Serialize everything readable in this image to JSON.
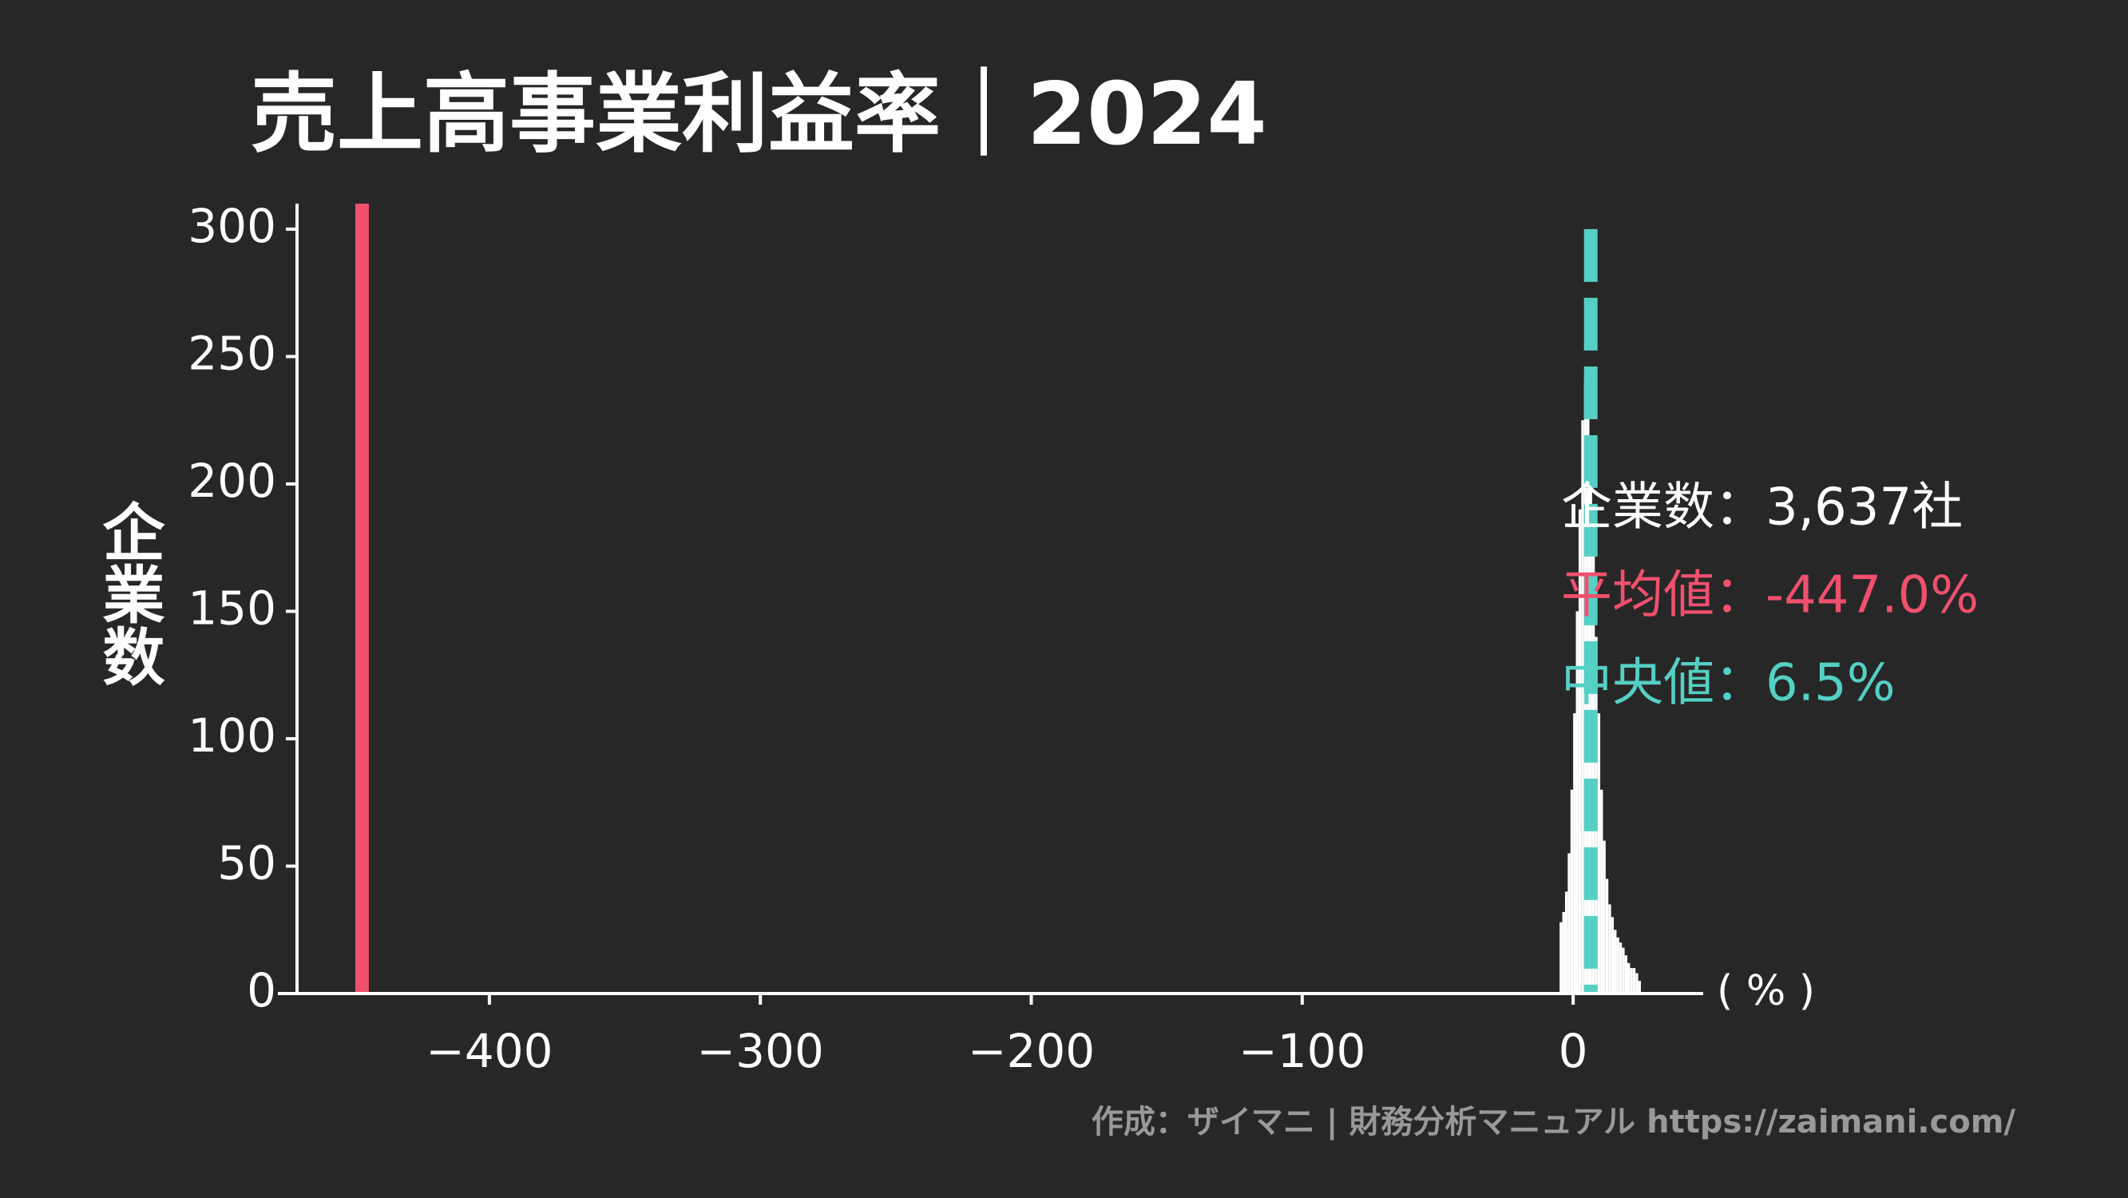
{
  "chart_data": {
    "type": "histogram",
    "title": "売上高事業利益率｜2024",
    "ylabel": "企業数",
    "xlabel": "( % )",
    "source": "作成：ザイマニ | 財務分析マニュアル https://zaimani.com/",
    "bins": [
      -5,
      -4,
      -3,
      -2,
      -1,
      0,
      1,
      2,
      3,
      4,
      5,
      6,
      7,
      8,
      9,
      10,
      11,
      12,
      13,
      14,
      15,
      16,
      17,
      18,
      19,
      20,
      21,
      22,
      23,
      24,
      25
    ],
    "values": [
      28,
      32,
      40,
      55,
      80,
      110,
      150,
      190,
      225,
      240,
      235,
      210,
      175,
      140,
      110,
      80,
      60,
      45,
      35,
      30,
      25,
      22,
      20,
      18,
      15,
      12,
      10,
      10,
      8,
      5
    ],
    "color": "#ffffff",
    "xlim": [
      -471,
      48
    ],
    "ylim": [
      0,
      310
    ],
    "xticks": [
      {
        "value": -400,
        "label": "−400"
      },
      {
        "value": -300,
        "label": "−300"
      },
      {
        "value": -200,
        "label": "−200"
      },
      {
        "value": -100,
        "label": "−100"
      },
      0
    ],
    "yticks": [
      0,
      50,
      100,
      150,
      200,
      250,
      300
    ],
    "mean": -447.0,
    "mean_color": "#f0506e",
    "median": 6.5,
    "median_color": "#55d0c4",
    "annotations": [
      "企業数：3,637社",
      "平均値：-447.0%",
      "中央値：6.5%"
    ]
  }
}
